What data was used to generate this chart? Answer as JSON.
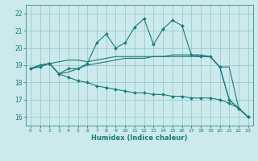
{
  "xlabel": "Humidex (Indice chaleur)",
  "xlim": [
    -0.5,
    23.5
  ],
  "ylim": [
    15.5,
    22.5
  ],
  "yticks": [
    16,
    17,
    18,
    19,
    20,
    21,
    22
  ],
  "xticks": [
    0,
    1,
    2,
    3,
    4,
    5,
    6,
    7,
    8,
    9,
    10,
    11,
    12,
    13,
    14,
    15,
    16,
    17,
    18,
    19,
    20,
    21,
    22,
    23
  ],
  "bg_color": "#cce9eb",
  "line_color": "#1a7a7a",
  "grid_color": "#8cc8c8",
  "line1_x": [
    0,
    1,
    2,
    3,
    4,
    5,
    6,
    7,
    8,
    9,
    10,
    11,
    12,
    13,
    14,
    15,
    16,
    17,
    18,
    19,
    20,
    21,
    22,
    23
  ],
  "line1_y": [
    18.8,
    19.0,
    19.1,
    18.5,
    18.8,
    18.8,
    19.1,
    20.3,
    20.8,
    20.0,
    20.3,
    21.2,
    21.7,
    20.2,
    21.1,
    21.6,
    21.3,
    19.6,
    19.5,
    19.5,
    18.9,
    17.0,
    16.5,
    16.0
  ],
  "line2_x": [
    0,
    1,
    2,
    3,
    4,
    5,
    6,
    7,
    8,
    9,
    10,
    11,
    12,
    13,
    14,
    15,
    16,
    17,
    18,
    19,
    20,
    21,
    22,
    23
  ],
  "line2_y": [
    18.8,
    19.0,
    19.1,
    19.2,
    19.3,
    19.3,
    19.2,
    19.3,
    19.4,
    19.5,
    19.5,
    19.5,
    19.5,
    19.5,
    19.5,
    19.6,
    19.6,
    19.6,
    19.6,
    19.5,
    18.9,
    17.0,
    16.5,
    16.0
  ],
  "line3_x": [
    0,
    1,
    2,
    3,
    4,
    5,
    6,
    7,
    8,
    9,
    10,
    11,
    12,
    13,
    14,
    15,
    16,
    17,
    18,
    19,
    20,
    21,
    22,
    23
  ],
  "line3_y": [
    18.8,
    19.0,
    19.1,
    18.5,
    18.6,
    18.8,
    19.0,
    19.1,
    19.2,
    19.3,
    19.4,
    19.4,
    19.4,
    19.5,
    19.5,
    19.5,
    19.5,
    19.5,
    19.5,
    19.5,
    18.9,
    18.9,
    16.5,
    16.0
  ],
  "line4_x": [
    0,
    1,
    2,
    3,
    4,
    5,
    6,
    7,
    8,
    9,
    10,
    11,
    12,
    13,
    14,
    15,
    16,
    17,
    18,
    19,
    20,
    21,
    22,
    23
  ],
  "line4_y": [
    18.8,
    18.9,
    19.1,
    18.5,
    18.3,
    18.1,
    18.0,
    17.8,
    17.7,
    17.6,
    17.5,
    17.4,
    17.4,
    17.3,
    17.3,
    17.2,
    17.2,
    17.1,
    17.1,
    17.1,
    17.0,
    16.8,
    16.5,
    16.0
  ]
}
